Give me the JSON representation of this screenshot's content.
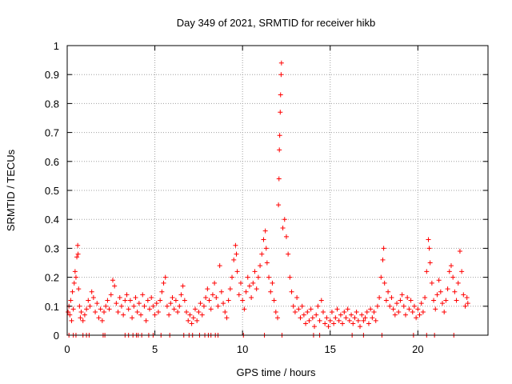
{
  "chart_data": {
    "type": "scatter",
    "title": "Day 349 of 2021, SRMTID for receiver hikb",
    "xlabel": "GPS time / hours",
    "ylabel": "SRMTID / TECUs",
    "xlim": [
      0,
      24
    ],
    "ylim": [
      0,
      1
    ],
    "xticks": [
      0,
      5,
      10,
      15,
      20
    ],
    "xtick_labels": [
      "0",
      "5",
      "10",
      "15",
      "20"
    ],
    "yticks": [
      0,
      0.1,
      0.2,
      0.3,
      0.4,
      0.5,
      0.6,
      0.7,
      0.8,
      0.9,
      1
    ],
    "ytick_labels": [
      "0",
      "0.1",
      "0.2",
      "0.3",
      "0.4",
      "0.5",
      "0.6",
      "0.7",
      "0.8",
      "0.9",
      "1"
    ],
    "grid": true,
    "marker": "+",
    "color": "#ff0000",
    "series": [
      {
        "name": "SRMTID",
        "points": [
          [
            0.05,
            0.08
          ],
          [
            0.1,
            0.1
          ],
          [
            0.15,
            0.07
          ],
          [
            0.2,
            0.12
          ],
          [
            0.25,
            0.05
          ],
          [
            0.3,
            0.15
          ],
          [
            0.35,
            0.09
          ],
          [
            0.4,
            0.18
          ],
          [
            0.45,
            0.22
          ],
          [
            0.5,
            0.2
          ],
          [
            0.55,
            0.27
          ],
          [
            0.6,
            0.31
          ],
          [
            0.62,
            0.28
          ],
          [
            0.65,
            0.16
          ],
          [
            0.7,
            0.1
          ],
          [
            0.75,
            0.06
          ],
          [
            0.8,
            0.08
          ],
          [
            0.9,
            0.05
          ],
          [
            1.0,
            0.07
          ],
          [
            1.1,
            0.09
          ],
          [
            1.2,
            0.12
          ],
          [
            1.3,
            0.1
          ],
          [
            1.4,
            0.15
          ],
          [
            1.5,
            0.13
          ],
          [
            1.6,
            0.08
          ],
          [
            1.7,
            0.11
          ],
          [
            1.8,
            0.06
          ],
          [
            1.9,
            0.09
          ],
          [
            2.0,
            0.05
          ],
          [
            2.1,
            0.08
          ],
          [
            2.2,
            0.1
          ],
          [
            2.3,
            0.12
          ],
          [
            2.4,
            0.09
          ],
          [
            2.5,
            0.14
          ],
          [
            2.6,
            0.19
          ],
          [
            2.7,
            0.17
          ],
          [
            2.8,
            0.11
          ],
          [
            2.9,
            0.08
          ],
          [
            3.0,
            0.13
          ],
          [
            3.1,
            0.1
          ],
          [
            3.2,
            0.07
          ],
          [
            3.3,
            0.12
          ],
          [
            3.4,
            0.14
          ],
          [
            3.5,
            0.09
          ],
          [
            3.6,
            0.12
          ],
          [
            3.7,
            0.06
          ],
          [
            3.8,
            0.1
          ],
          [
            3.9,
            0.13
          ],
          [
            4.0,
            0.08
          ],
          [
            4.1,
            0.11
          ],
          [
            4.2,
            0.07
          ],
          [
            4.3,
            0.14
          ],
          [
            4.4,
            0.1
          ],
          [
            4.5,
            0.05
          ],
          [
            4.6,
            0.12
          ],
          [
            4.7,
            0.09
          ],
          [
            4.8,
            0.13
          ],
          [
            4.9,
            0.1
          ],
          [
            5.0,
            0.07
          ],
          [
            5.1,
            0.11
          ],
          [
            5.2,
            0.08
          ],
          [
            5.3,
            0.12
          ],
          [
            5.4,
            0.15
          ],
          [
            5.5,
            0.18
          ],
          [
            5.6,
            0.2
          ],
          [
            5.7,
            0.1
          ],
          [
            5.8,
            0.07
          ],
          [
            5.9,
            0.11
          ],
          [
            6.0,
            0.13
          ],
          [
            6.1,
            0.09
          ],
          [
            6.2,
            0.12
          ],
          [
            6.3,
            0.08
          ],
          [
            6.4,
            0.1
          ],
          [
            6.5,
            0.14
          ],
          [
            6.6,
            0.17
          ],
          [
            6.7,
            0.12
          ],
          [
            6.8,
            0.08
          ],
          [
            6.9,
            0.05
          ],
          [
            7.0,
            0.07
          ],
          [
            7.1,
            0.04
          ],
          [
            7.2,
            0.06
          ],
          [
            7.3,
            0.09
          ],
          [
            7.4,
            0.05
          ],
          [
            7.5,
            0.08
          ],
          [
            7.6,
            0.11
          ],
          [
            7.7,
            0.07
          ],
          [
            7.8,
            0.1
          ],
          [
            7.9,
            0.13
          ],
          [
            8.0,
            0.16
          ],
          [
            8.1,
            0.12
          ],
          [
            8.2,
            0.09
          ],
          [
            8.3,
            0.14
          ],
          [
            8.4,
            0.18
          ],
          [
            8.5,
            0.13
          ],
          [
            8.6,
            0.1
          ],
          [
            8.7,
            0.24
          ],
          [
            8.8,
            0.15
          ],
          [
            8.9,
            0.11
          ],
          [
            9.0,
            0.08
          ],
          [
            9.1,
            0.06
          ],
          [
            9.2,
            0.12
          ],
          [
            9.3,
            0.16
          ],
          [
            9.4,
            0.2
          ],
          [
            9.5,
            0.26
          ],
          [
            9.6,
            0.31
          ],
          [
            9.65,
            0.28
          ],
          [
            9.7,
            0.22
          ],
          [
            9.8,
            0.14
          ],
          [
            9.9,
            0.18
          ],
          [
            10.0,
            0.12
          ],
          [
            10.1,
            0.09
          ],
          [
            10.2,
            0.15
          ],
          [
            10.3,
            0.2
          ],
          [
            10.4,
            0.17
          ],
          [
            10.5,
            0.13
          ],
          [
            10.6,
            0.18
          ],
          [
            10.7,
            0.22
          ],
          [
            10.8,
            0.16
          ],
          [
            10.9,
            0.2
          ],
          [
            11.0,
            0.24
          ],
          [
            11.1,
            0.28
          ],
          [
            11.2,
            0.33
          ],
          [
            11.3,
            0.36
          ],
          [
            11.35,
            0.3
          ],
          [
            11.4,
            0.25
          ],
          [
            11.5,
            0.2
          ],
          [
            11.6,
            0.15
          ],
          [
            11.7,
            0.18
          ],
          [
            11.8,
            0.12
          ],
          [
            11.9,
            0.08
          ],
          [
            12.0,
            0.06
          ],
          [
            12.05,
            0.45
          ],
          [
            12.08,
            0.54
          ],
          [
            12.1,
            0.64
          ],
          [
            12.12,
            0.69
          ],
          [
            12.15,
            0.77
          ],
          [
            12.17,
            0.83
          ],
          [
            12.2,
            0.9
          ],
          [
            12.22,
            0.94
          ],
          [
            12.3,
            0.37
          ],
          [
            12.4,
            0.4
          ],
          [
            12.5,
            0.34
          ],
          [
            12.6,
            0.28
          ],
          [
            12.7,
            0.2
          ],
          [
            12.8,
            0.15
          ],
          [
            12.9,
            0.1
          ],
          [
            13.0,
            0.08
          ],
          [
            13.1,
            0.13
          ],
          [
            13.2,
            0.09
          ],
          [
            13.3,
            0.06
          ],
          [
            13.4,
            0.1
          ],
          [
            13.5,
            0.07
          ],
          [
            13.6,
            0.04
          ],
          [
            13.7,
            0.08
          ],
          [
            13.8,
            0.05
          ],
          [
            13.9,
            0.09
          ],
          [
            14.0,
            0.06
          ],
          [
            14.1,
            0.03
          ],
          [
            14.2,
            0.07
          ],
          [
            14.3,
            0.1
          ],
          [
            14.4,
            0.05
          ],
          [
            14.5,
            0.12
          ],
          [
            14.6,
            0.08
          ],
          [
            14.7,
            0.04
          ],
          [
            14.8,
            0.06
          ],
          [
            14.9,
            0.03
          ],
          [
            15.0,
            0.05
          ],
          [
            15.1,
            0.08
          ],
          [
            15.2,
            0.04
          ],
          [
            15.3,
            0.06
          ],
          [
            15.4,
            0.09
          ],
          [
            15.5,
            0.05
          ],
          [
            15.6,
            0.07
          ],
          [
            15.7,
            0.04
          ],
          [
            15.8,
            0.08
          ],
          [
            15.9,
            0.06
          ],
          [
            16.0,
            0.09
          ],
          [
            16.1,
            0.05
          ],
          [
            16.2,
            0.07
          ],
          [
            16.3,
            0.04
          ],
          [
            16.4,
            0.06
          ],
          [
            16.5,
            0.08
          ],
          [
            16.6,
            0.05
          ],
          [
            16.7,
            0.03
          ],
          [
            16.8,
            0.07
          ],
          [
            16.9,
            0.05
          ],
          [
            17.0,
            0.06
          ],
          [
            17.1,
            0.08
          ],
          [
            17.2,
            0.04
          ],
          [
            17.3,
            0.09
          ],
          [
            17.4,
            0.06
          ],
          [
            17.5,
            0.08
          ],
          [
            17.6,
            0.05
          ],
          [
            17.7,
            0.1
          ],
          [
            17.8,
            0.13
          ],
          [
            17.9,
            0.2
          ],
          [
            18.0,
            0.26
          ],
          [
            18.05,
            0.3
          ],
          [
            18.1,
            0.18
          ],
          [
            18.2,
            0.12
          ],
          [
            18.3,
            0.15
          ],
          [
            18.4,
            0.1
          ],
          [
            18.5,
            0.13
          ],
          [
            18.6,
            0.09
          ],
          [
            18.7,
            0.07
          ],
          [
            18.8,
            0.11
          ],
          [
            18.9,
            0.08
          ],
          [
            19.0,
            0.12
          ],
          [
            19.1,
            0.14
          ],
          [
            19.2,
            0.1
          ],
          [
            19.3,
            0.07
          ],
          [
            19.4,
            0.13
          ],
          [
            19.5,
            0.09
          ],
          [
            19.6,
            0.12
          ],
          [
            19.7,
            0.08
          ],
          [
            19.8,
            0.1
          ],
          [
            19.9,
            0.06
          ],
          [
            20.0,
            0.09
          ],
          [
            20.1,
            0.07
          ],
          [
            20.2,
            0.11
          ],
          [
            20.3,
            0.08
          ],
          [
            20.4,
            0.13
          ],
          [
            20.5,
            0.22
          ],
          [
            20.6,
            0.33
          ],
          [
            20.65,
            0.3
          ],
          [
            20.7,
            0.25
          ],
          [
            20.8,
            0.18
          ],
          [
            20.9,
            0.12
          ],
          [
            21.0,
            0.09
          ],
          [
            21.1,
            0.14
          ],
          [
            21.2,
            0.19
          ],
          [
            21.3,
            0.15
          ],
          [
            21.4,
            0.11
          ],
          [
            21.5,
            0.08
          ],
          [
            21.6,
            0.12
          ],
          [
            21.7,
            0.16
          ],
          [
            21.8,
            0.22
          ],
          [
            21.9,
            0.24
          ],
          [
            22.0,
            0.2
          ],
          [
            22.1,
            0.15
          ],
          [
            22.2,
            0.12
          ],
          [
            22.3,
            0.18
          ],
          [
            22.4,
            0.29
          ],
          [
            22.5,
            0.22
          ],
          [
            22.6,
            0.14
          ],
          [
            22.7,
            0.1
          ],
          [
            22.8,
            0.13
          ],
          [
            22.85,
            0.11
          ]
        ],
        "zero_points": [
          0.1,
          0.35,
          0.5,
          0.9,
          1.1,
          1.25,
          2.05,
          2.15,
          3.3,
          3.5,
          3.75,
          3.95,
          4.05,
          4.25,
          4.65,
          4.9,
          5.35,
          5.85,
          6.65,
          6.95,
          7.15,
          7.55,
          7.85,
          8.05,
          8.2,
          8.45,
          8.6,
          10.05,
          11.25,
          12.25,
          14.05,
          14.4,
          16.25,
          16.9,
          17.95,
          19.75,
          20.5,
          20.95,
          22.05
        ]
      }
    ]
  }
}
